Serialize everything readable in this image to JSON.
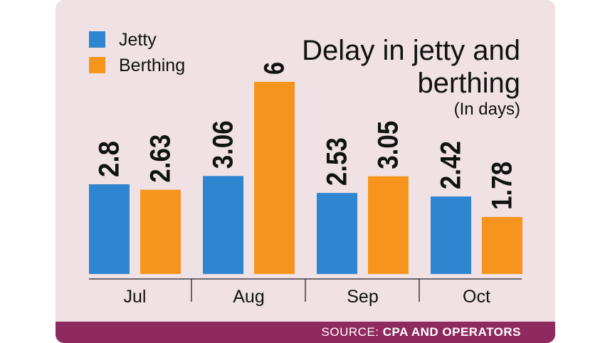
{
  "colors": {
    "jetty": "#2e86d1",
    "berthing": "#f7941d",
    "background": "#efe1e4",
    "footer": "#8f2a5e"
  },
  "chart_data": {
    "type": "bar",
    "title": "Delay in jetty and berthing",
    "subtitle": "(In days)",
    "categories": [
      "Jul",
      "Aug",
      "Sep",
      "Oct"
    ],
    "series": [
      {
        "name": "Jetty",
        "values": [
          2.8,
          3.06,
          2.53,
          2.42
        ],
        "labels": [
          "2.8",
          "3.06",
          "2.53",
          "2.42"
        ]
      },
      {
        "name": "Berthing",
        "values": [
          2.63,
          6,
          3.05,
          1.78
        ],
        "labels": [
          "2.63",
          "6",
          "3.05",
          "1.78"
        ]
      }
    ],
    "ylim": [
      0,
      6
    ],
    "grid": false,
    "legend_position": "top-left"
  },
  "title_lines": [
    "Delay in jetty and",
    "berthing"
  ],
  "footer": {
    "lead": "SOURCE: ",
    "name": "CPA AND OPERATORS"
  }
}
